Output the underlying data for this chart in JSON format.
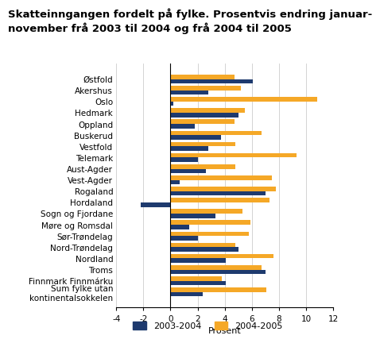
{
  "title": "Skatteinngangen fordelt på fylke. Prosentvis endring januar-\nnovember frå 2003 til 2004 og frå 2004 til 2005",
  "categories": [
    "Østfold",
    "Akershus",
    "Oslo",
    "Hedmark",
    "Oppland",
    "Buskerud",
    "Vestfold",
    "Telemark",
    "Aust-Agder",
    "Vest-Agder",
    "Rogaland",
    "Hordaland",
    "Sogn og Fjordane",
    "Møre og Romsdal",
    "Sør-Trøndelag",
    "Nord-Trøndelag",
    "Nordland",
    "Troms",
    "Finnmark Finnmárku",
    "Sum fylke utan\nkontinentalsokkelen"
  ],
  "values_2003_2004": [
    6.1,
    2.8,
    0.2,
    5.0,
    1.8,
    3.7,
    2.8,
    2.0,
    2.6,
    0.7,
    7.0,
    -2.2,
    3.3,
    1.4,
    2.0,
    5.0,
    4.1,
    7.0,
    4.1,
    2.4
  ],
  "values_2004_2005": [
    4.7,
    5.2,
    10.8,
    5.5,
    4.7,
    6.7,
    4.8,
    9.3,
    4.8,
    7.5,
    7.8,
    7.3,
    5.3,
    5.9,
    5.8,
    4.8,
    7.6,
    6.7,
    3.8,
    7.1
  ],
  "color_2003_2004": "#1e3a6e",
  "color_2004_2005": "#f5a827",
  "xlabel": "Prosent",
  "xlim": [
    -4,
    12
  ],
  "xticks": [
    -4,
    -2,
    0,
    2,
    4,
    6,
    8,
    10,
    12
  ],
  "bar_height": 0.4,
  "background_color": "#ffffff",
  "grid_color": "#cccccc",
  "title_fontsize": 9.5,
  "label_fontsize": 8,
  "tick_fontsize": 7.5,
  "legend_fontsize": 8
}
